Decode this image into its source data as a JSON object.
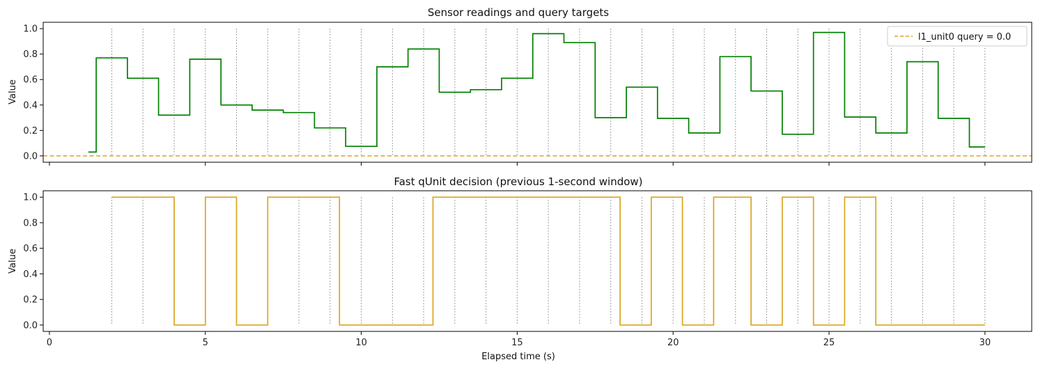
{
  "figure": {
    "xlabel": "Elapsed time (s)",
    "xlim": [
      -0.2,
      31.5
    ],
    "xticks": [
      0,
      5,
      10,
      15,
      20,
      25,
      30
    ]
  },
  "chart_data": [
    {
      "type": "line",
      "title": "Sensor readings and query targets",
      "ylabel": "Value",
      "ylim": [
        -0.05,
        1.05
      ],
      "yticks": [
        0.0,
        0.2,
        0.4,
        0.6,
        0.8,
        1.0
      ],
      "grid": false,
      "legend": {
        "placement": "top-right",
        "entries": [
          "l1_unit0 query = 0.0"
        ]
      },
      "window_markers": [
        2,
        3,
        4,
        5,
        6,
        7,
        8,
        9,
        10,
        11,
        12,
        13,
        14,
        15,
        16,
        17,
        18,
        19,
        20,
        21,
        22,
        23,
        24,
        25,
        26,
        27,
        28,
        29,
        30
      ],
      "series": [
        {
          "color": "#008000",
          "step": "post",
          "x": [
            1.25,
            1.5,
            2.5,
            3.5,
            4.5,
            5.5,
            6.5,
            7.5,
            8.5,
            9.5,
            10.5,
            11.5,
            12.5,
            13.5,
            14.5,
            15.5,
            16.5,
            17.5,
            18.5,
            19.5,
            20.5,
            21.5,
            22.5,
            23.5,
            24.5,
            25.5,
            26.5,
            27.5,
            28.5,
            29.5,
            30.0
          ],
          "y": [
            0.03,
            0.77,
            0.61,
            0.32,
            0.76,
            0.4,
            0.36,
            0.34,
            0.22,
            0.075,
            0.7,
            0.84,
            0.5,
            0.52,
            0.61,
            0.96,
            0.89,
            0.3,
            0.54,
            0.295,
            0.18,
            0.78,
            0.51,
            0.17,
            0.97,
            0.305,
            0.18,
            0.74,
            0.295,
            0.07,
            0.07
          ]
        }
      ],
      "hlines": [
        {
          "name": "l1_unit0 query = 0.0",
          "y": 0.0,
          "color": "#DAA520",
          "dashed": true
        }
      ]
    },
    {
      "type": "line",
      "title": "Fast qUnit decision (previous 1-second window)",
      "ylabel": "Value",
      "ylim": [
        -0.05,
        1.05
      ],
      "yticks": [
        0.0,
        0.2,
        0.4,
        0.6,
        0.8,
        1.0
      ],
      "grid": false,
      "window_markers": [
        2,
        3,
        4,
        5,
        6,
        7,
        8,
        9,
        10,
        11,
        12,
        13,
        14,
        15,
        16,
        17,
        18,
        19,
        20,
        21,
        22,
        23,
        24,
        25,
        26,
        27,
        28,
        29,
        30
      ],
      "series": [
        {
          "color": "#DAA520",
          "step": "post",
          "x": [
            2.0,
            4.0,
            5.0,
            6.0,
            7.0,
            9.3,
            12.3,
            18.3,
            19.3,
            20.3,
            21.3,
            22.5,
            23.5,
            24.5,
            25.5,
            26.5,
            30.0
          ],
          "y": [
            1,
            0,
            1,
            0,
            1,
            0,
            1,
            0,
            1,
            0,
            1,
            0,
            1,
            0,
            1,
            0,
            0
          ]
        }
      ]
    }
  ]
}
